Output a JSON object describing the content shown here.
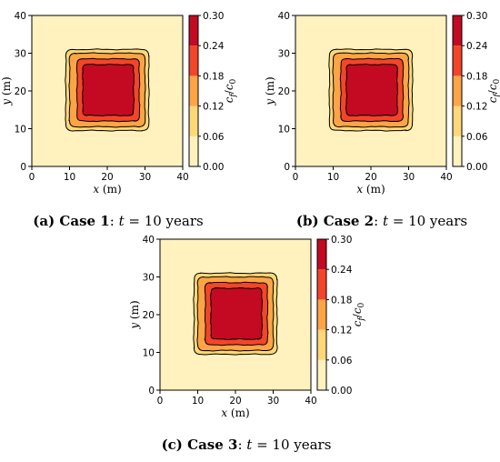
{
  "chart_data": [
    {
      "type": "heatmap",
      "caption": {
        "tag": "(a)",
        "bold": "Case 1",
        "rest": ": t = 10 years"
      },
      "xlabel": {
        "var": "x",
        "unit": " (m)"
      },
      "ylabel": {
        "var": "y",
        "unit": " (m)"
      },
      "xlim": [
        0,
        40
      ],
      "ylim": [
        0,
        40
      ],
      "xticks": [
        "0",
        "10",
        "20",
        "30",
        "40"
      ],
      "yticks": [
        "0",
        "10",
        "20",
        "30",
        "40"
      ],
      "colorbar": {
        "label": "cf/c0",
        "levels": [
          0.0,
          0.06,
          0.12,
          0.18,
          0.24,
          0.3
        ],
        "ticks": [
          "0.00",
          "0.06",
          "0.12",
          "0.18",
          "0.24",
          "0.30"
        ]
      },
      "contours": [
        {
          "level": 0.06,
          "x0": 9.0,
          "x1": 31.0,
          "y0": 9.5,
          "y1": 31.0
        },
        {
          "level": 0.12,
          "x0": 10.0,
          "x1": 30.0,
          "y0": 10.5,
          "y1": 30.0
        },
        {
          "level": 0.18,
          "x0": 12.0,
          "x1": 28.5,
          "y0": 12.0,
          "y1": 28.5
        },
        {
          "level": 0.24,
          "x0": 13.5,
          "x1": 27.0,
          "y0": 13.5,
          "y1": 27.0
        }
      ]
    },
    {
      "type": "heatmap",
      "caption": {
        "tag": "(b)",
        "bold": "Case 2",
        "rest": ": t = 10 years"
      },
      "xlabel": {
        "var": "x",
        "unit": " (m)"
      },
      "ylabel": {
        "var": "y",
        "unit": " (m)"
      },
      "xlim": [
        0,
        40
      ],
      "ylim": [
        0,
        40
      ],
      "xticks": [
        "0",
        "10",
        "20",
        "30",
        "40"
      ],
      "yticks": [
        "0",
        "10",
        "20",
        "30",
        "40"
      ],
      "colorbar": {
        "label": "cf/c0",
        "levels": [
          0.0,
          0.06,
          0.12,
          0.18,
          0.24,
          0.3
        ],
        "ticks": [
          "0.00",
          "0.06",
          "0.12",
          "0.18",
          "0.24",
          "0.30"
        ]
      },
      "contours": [
        {
          "level": 0.06,
          "x0": 9.0,
          "x1": 31.0,
          "y0": 9.5,
          "y1": 31.0
        },
        {
          "level": 0.12,
          "x0": 10.0,
          "x1": 30.0,
          "y0": 10.5,
          "y1": 30.0
        },
        {
          "level": 0.18,
          "x0": 12.0,
          "x1": 28.5,
          "y0": 12.0,
          "y1": 28.5
        },
        {
          "level": 0.24,
          "x0": 13.5,
          "x1": 27.0,
          "y0": 13.5,
          "y1": 27.0
        }
      ]
    },
    {
      "type": "heatmap",
      "caption": {
        "tag": "(c)",
        "bold": "Case 3",
        "rest": ": t = 10 years"
      },
      "xlabel": {
        "var": "x",
        "unit": " (m)"
      },
      "ylabel": {
        "var": "y",
        "unit": " (m)"
      },
      "xlim": [
        0,
        40
      ],
      "ylim": [
        0,
        40
      ],
      "xticks": [
        "0",
        "10",
        "20",
        "30",
        "40"
      ],
      "yticks": [
        "0",
        "10",
        "20",
        "30",
        "40"
      ],
      "colorbar": {
        "label": "cf/c0",
        "levels": [
          0.0,
          0.06,
          0.12,
          0.18,
          0.24,
          0.3
        ],
        "ticks": [
          "0.00",
          "0.06",
          "0.12",
          "0.18",
          "0.24",
          "0.30"
        ]
      },
      "contours": [
        {
          "level": 0.06,
          "x0": 9.0,
          "x1": 31.0,
          "y0": 9.5,
          "y1": 31.0
        },
        {
          "level": 0.12,
          "x0": 10.0,
          "x1": 30.0,
          "y0": 10.5,
          "y1": 30.0
        },
        {
          "level": 0.18,
          "x0": 12.0,
          "x1": 28.5,
          "y0": 12.0,
          "y1": 28.5
        },
        {
          "level": 0.24,
          "x0": 13.5,
          "x1": 27.0,
          "y0": 13.5,
          "y1": 27.0
        }
      ]
    }
  ],
  "colors": {
    "band_0": "#fff2be",
    "band_1": "#fed778",
    "band_2": "#fca446",
    "band_3": "#f3452a",
    "band_4": "#c30a22"
  }
}
